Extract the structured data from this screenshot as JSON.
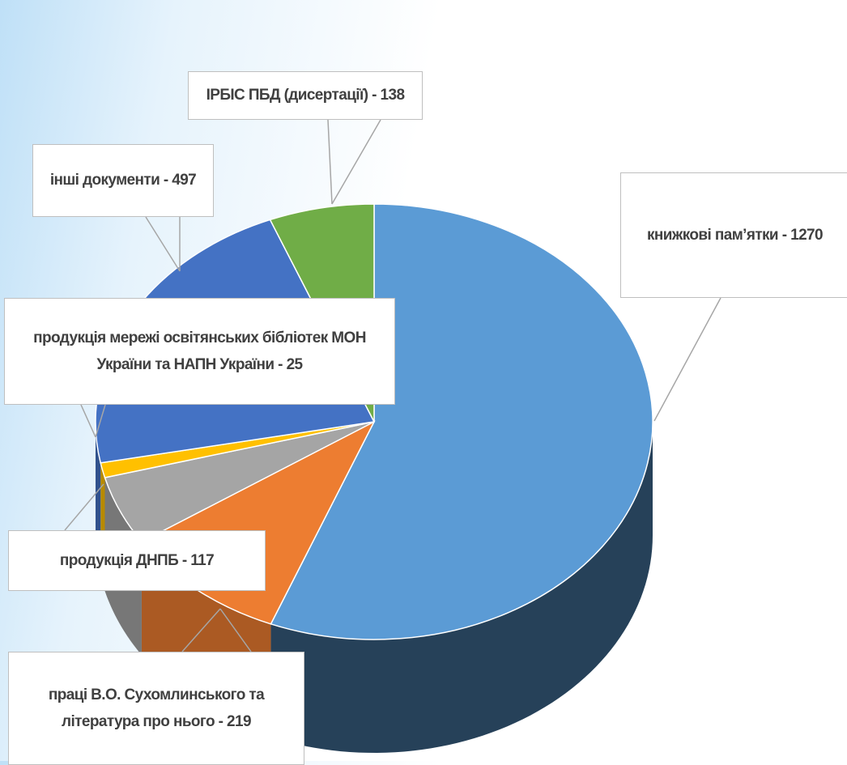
{
  "chart_data": {
    "type": "pie3d",
    "categories": [
      "книжкові пам’ятки - 1270",
      "праці В.О. Сухомлинського та література про нього - 219",
      "продукція ДНПБ - 117",
      "продукція мережі освітянських бібліотек МОН України та НАПН України - 25",
      "інші документи - 497",
      "ІРБІС ПБД (дисертації) - 138"
    ],
    "values": [
      1270,
      219,
      117,
      25,
      497,
      138
    ],
    "colors": [
      "#5b9bd5",
      "#ed7d31",
      "#a5a5a5",
      "#ffc000",
      "#4472c4",
      "#70ad47"
    ]
  }
}
